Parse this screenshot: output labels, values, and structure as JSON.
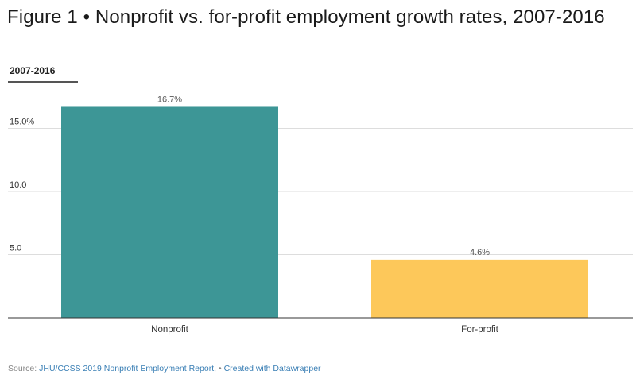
{
  "title": "Figure 1 • Nonprofit vs. for-profit employment growth rates, 2007-2016",
  "tab": {
    "label": "2007-2016"
  },
  "source": {
    "prefix": "Source: ",
    "link": "JHU/CCSS 2019 Nonprofit Employment Report",
    "suffix": ", • ",
    "credit": "Created with Datawrapper"
  },
  "colors": {
    "nonprofit": "#3d9696",
    "forprofit": "#fdc85a",
    "grid": "#dddddd",
    "axis": "#333333"
  },
  "chart_data": {
    "type": "bar",
    "categories": [
      "Nonprofit",
      "For-profit"
    ],
    "values": [
      16.7,
      4.6
    ],
    "value_labels": [
      "16.7%",
      "4.6%"
    ],
    "yticks": [
      5.0,
      10.0,
      15.0
    ],
    "ytick_labels": [
      "5.0",
      "10.0",
      "15.0%"
    ],
    "ylim": [
      0,
      17.5
    ],
    "grid": true,
    "title": "Figure 1 • Nonprofit vs. for-profit employment growth rates, 2007-2016",
    "xlabel": "",
    "ylabel": ""
  }
}
